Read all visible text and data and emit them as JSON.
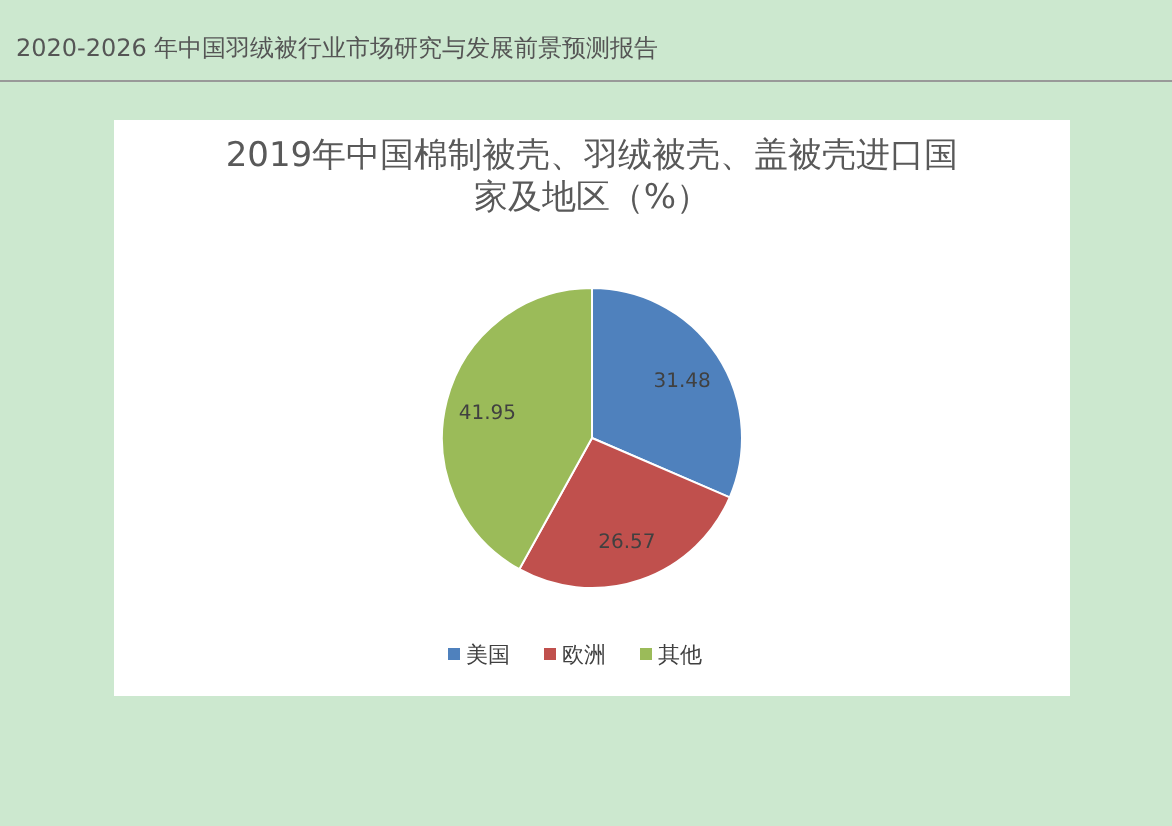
{
  "chart_data": {
    "type": "pie",
    "title": "2019年中国棉制被壳、羽绒被壳、盖被壳进口国家及地区（%）",
    "categories": [
      "美国",
      "欧洲",
      "其他"
    ],
    "values": [
      31.48,
      26.57,
      41.95
    ],
    "colors": [
      "#4f81bd",
      "#c0504d",
      "#9bbb59"
    ],
    "data_labels": true,
    "legend": "bottom",
    "annotations": [
      "2020-2026 年中国羽绒被行业市场研究与发展前景预测报告"
    ]
  }
}
